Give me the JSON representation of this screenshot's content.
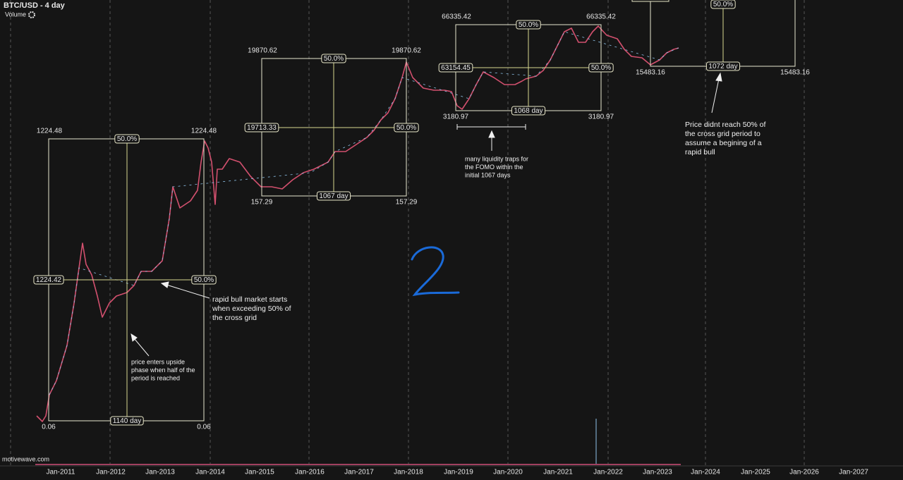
{
  "header": {
    "title": "BTC/USD - 4 day",
    "indicator": "Volume"
  },
  "x_axis": {
    "labels": [
      "Jan-2011",
      "Jan-2012",
      "Jan-2013",
      "Jan-2014",
      "Jan-2015",
      "Jan-2016",
      "Jan-2017",
      "Jan-2018",
      "Jan-2019",
      "Jan-2020",
      "Jan-2021",
      "Jan-2022",
      "Jan-2023",
      "Jan-2024",
      "Jan-2025",
      "Jan-2026",
      "Jan-2027"
    ]
  },
  "grids": [
    {
      "top_left": "1224.48",
      "top_right": "1224.48",
      "top_mid": "50.0%",
      "left_mid": "1224.42",
      "right_mid": "50.0%",
      "bottom_mid": "1140 day",
      "bottom_left": "0.06",
      "bottom_right": "0.06"
    },
    {
      "top_left": "19870.62",
      "top_right": "19870.62",
      "top_mid": "50.0%",
      "left_mid": "19713.33",
      "right_mid": "50.0%",
      "bottom_mid": "1067 day",
      "bottom_left": "157.29",
      "bottom_right": "157.29"
    },
    {
      "top_left": "66335.42",
      "top_right": "66335.42",
      "top_mid": "50.0%",
      "left_mid": "63154.45",
      "right_mid": "50.0%",
      "bottom_mid": "1068 day",
      "bottom_left": "3180.97",
      "bottom_right": "3180.97"
    },
    {
      "top_mid": "50.0%",
      "bottom_mid": "1072 day",
      "bottom_left": "15483.16",
      "bottom_right": "15483.16"
    }
  ],
  "annotations": [
    [
      "rapid bull market starts",
      "when  exceeding 50% of",
      "the cross grid"
    ],
    [
      "price enters upside",
      "phase when half of the",
      "period is reached"
    ],
    [
      "many liquidity traps for",
      "the FOMO within the",
      "initial 1067 days"
    ],
    [
      "Price didnt reach 50% of",
      "the cross grid period to",
      "assume a begining of a",
      "rapid bull"
    ]
  ],
  "footer": {
    "watermark": "motivewave.com"
  }
}
